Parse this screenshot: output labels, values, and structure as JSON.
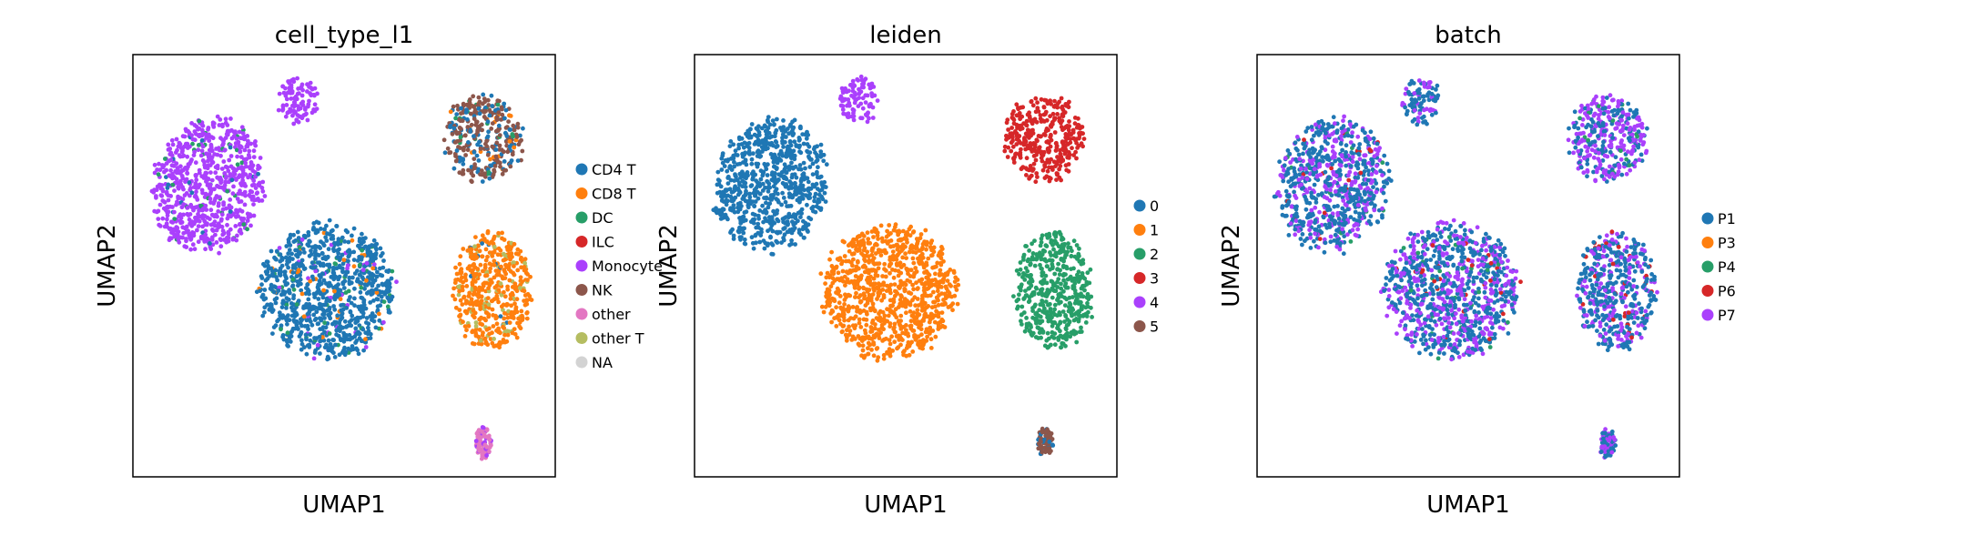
{
  "chart_data": [
    {
      "type": "scatter",
      "title": "cell_type_l1",
      "xlabel": "UMAP1",
      "ylabel": "UMAP2",
      "xlim": [
        0,
        100
      ],
      "ylim": [
        0,
        100
      ],
      "grid": false,
      "legend_position": "right",
      "legend": [
        {
          "name": "CD4 T",
          "color": "#1f77b4"
        },
        {
          "name": "CD8 T",
          "color": "#ff7f0e"
        },
        {
          "name": "DC",
          "color": "#279e68"
        },
        {
          "name": "ILC",
          "color": "#d62728"
        },
        {
          "name": "Monocyte",
          "color": "#aa40fc"
        },
        {
          "name": "NK",
          "color": "#8c564b"
        },
        {
          "name": "other",
          "color": "#e377c2"
        },
        {
          "name": "other T",
          "color": "#b5bd61"
        },
        {
          "name": "NA",
          "color": "#d3d3d3"
        }
      ],
      "clusters": [
        {
          "x": 18,
          "y": 69,
          "rx": 14,
          "ry": 17,
          "tilt": -15,
          "mix": [
            [
              "#aa40fc",
              0.92
            ],
            [
              "#279e68",
              0.05
            ],
            [
              "#1f77b4",
              0.03
            ]
          ]
        },
        {
          "x": 39,
          "y": 89,
          "rx": 5,
          "ry": 6,
          "tilt": 0,
          "mix": [
            [
              "#aa40fc",
              1.0
            ]
          ]
        },
        {
          "x": 46,
          "y": 44,
          "rx": 17,
          "ry": 17,
          "tilt": 0,
          "mix": [
            [
              "#1f77b4",
              0.9
            ],
            [
              "#279e68",
              0.04
            ],
            [
              "#ff7f0e",
              0.03
            ],
            [
              "#aa40fc",
              0.03
            ]
          ]
        },
        {
          "x": 83,
          "y": 80,
          "rx": 10,
          "ry": 11,
          "tilt": 10,
          "mix": [
            [
              "#8c564b",
              0.6
            ],
            [
              "#1f77b4",
              0.28
            ],
            [
              "#ff7f0e",
              0.07
            ],
            [
              "#279e68",
              0.05
            ]
          ]
        },
        {
          "x": 85,
          "y": 44,
          "rx": 10,
          "ry": 15,
          "tilt": 0,
          "mix": [
            [
              "#ff7f0e",
              0.85
            ],
            [
              "#b5bd61",
              0.12
            ],
            [
              "#1f77b4",
              0.03
            ]
          ]
        },
        {
          "x": 83,
          "y": 8,
          "rx": 2,
          "ry": 4,
          "tilt": 0,
          "mix": [
            [
              "#e377c2",
              0.8
            ],
            [
              "#aa40fc",
              0.2
            ]
          ]
        }
      ]
    },
    {
      "type": "scatter",
      "title": "leiden",
      "xlabel": "UMAP1",
      "ylabel": "UMAP2",
      "xlim": [
        0,
        100
      ],
      "ylim": [
        0,
        100
      ],
      "grid": false,
      "legend_position": "right",
      "legend": [
        {
          "name": "0",
          "color": "#1f77b4"
        },
        {
          "name": "1",
          "color": "#ff7f0e"
        },
        {
          "name": "2",
          "color": "#279e68"
        },
        {
          "name": "3",
          "color": "#d62728"
        },
        {
          "name": "4",
          "color": "#aa40fc"
        },
        {
          "name": "5",
          "color": "#8c564b"
        }
      ],
      "clusters": [
        {
          "x": 18,
          "y": 69,
          "rx": 14,
          "ry": 17,
          "tilt": -15,
          "mix": [
            [
              "#1f77b4",
              1.0
            ]
          ]
        },
        {
          "x": 39,
          "y": 89,
          "rx": 5,
          "ry": 6,
          "tilt": 0,
          "mix": [
            [
              "#aa40fc",
              1.0
            ]
          ]
        },
        {
          "x": 46,
          "y": 44,
          "rx": 17,
          "ry": 17,
          "tilt": 0,
          "mix": [
            [
              "#ff7f0e",
              1.0
            ]
          ]
        },
        {
          "x": 83,
          "y": 80,
          "rx": 10,
          "ry": 11,
          "tilt": 10,
          "mix": [
            [
              "#d62728",
              1.0
            ]
          ]
        },
        {
          "x": 85,
          "y": 44,
          "rx": 10,
          "ry": 15,
          "tilt": 0,
          "mix": [
            [
              "#279e68",
              1.0
            ]
          ]
        },
        {
          "x": 83,
          "y": 8,
          "rx": 2,
          "ry": 4,
          "tilt": 0,
          "mix": [
            [
              "#8c564b",
              0.85
            ],
            [
              "#1f77b4",
              0.15
            ]
          ]
        }
      ]
    },
    {
      "type": "scatter",
      "title": "batch",
      "xlabel": "UMAP1",
      "ylabel": "UMAP2",
      "xlim": [
        0,
        100
      ],
      "ylim": [
        0,
        100
      ],
      "grid": false,
      "legend_position": "right",
      "legend": [
        {
          "name": "P1",
          "color": "#1f77b4"
        },
        {
          "name": "P3",
          "color": "#ff7f0e"
        },
        {
          "name": "P4",
          "color": "#279e68"
        },
        {
          "name": "P6",
          "color": "#d62728"
        },
        {
          "name": "P7",
          "color": "#aa40fc"
        }
      ],
      "clusters": [
        {
          "x": 18,
          "y": 69,
          "rx": 14,
          "ry": 17,
          "tilt": -15,
          "mix": [
            [
              "#1f77b4",
              0.62
            ],
            [
              "#aa40fc",
              0.33
            ],
            [
              "#d62728",
              0.03
            ],
            [
              "#279e68",
              0.02
            ]
          ]
        },
        {
          "x": 39,
          "y": 89,
          "rx": 5,
          "ry": 6,
          "tilt": 0,
          "mix": [
            [
              "#1f77b4",
              0.75
            ],
            [
              "#aa40fc",
              0.25
            ]
          ]
        },
        {
          "x": 46,
          "y": 44,
          "rx": 17,
          "ry": 17,
          "tilt": 0,
          "mix": [
            [
              "#1f77b4",
              0.55
            ],
            [
              "#aa40fc",
              0.4
            ],
            [
              "#d62728",
              0.03
            ],
            [
              "#279e68",
              0.02
            ]
          ]
        },
        {
          "x": 83,
          "y": 80,
          "rx": 10,
          "ry": 11,
          "tilt": 10,
          "mix": [
            [
              "#aa40fc",
              0.62
            ],
            [
              "#1f77b4",
              0.33
            ],
            [
              "#279e68",
              0.05
            ]
          ]
        },
        {
          "x": 85,
          "y": 44,
          "rx": 10,
          "ry": 15,
          "tilt": 0,
          "mix": [
            [
              "#1f77b4",
              0.6
            ],
            [
              "#aa40fc",
              0.35
            ],
            [
              "#d62728",
              0.05
            ]
          ]
        },
        {
          "x": 83,
          "y": 8,
          "rx": 2,
          "ry": 4,
          "tilt": 0,
          "mix": [
            [
              "#1f77b4",
              0.6
            ],
            [
              "#aa40fc",
              0.4
            ]
          ]
        }
      ]
    }
  ]
}
